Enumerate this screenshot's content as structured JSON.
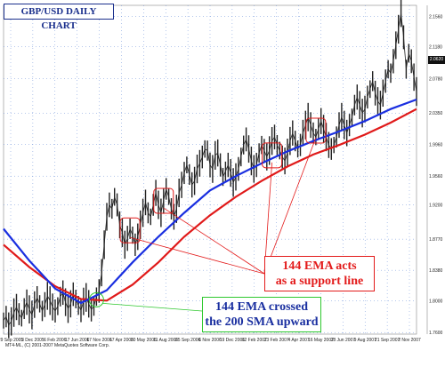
{
  "title": "GBP/USD DAILY CHART",
  "annotations": {
    "support": [
      "144 EMA acts",
      "as a  support line"
    ],
    "cross": [
      "144 EMA crossed",
      "the 200 SMA upward"
    ]
  },
  "copyright": "MT4-ML, (C) 2001-2007 MetaQuotes Software Corp.",
  "price_marker": "2.0620",
  "colors": {
    "price": "#222222",
    "ema144": "#1a2fe0",
    "sma200": "#e01a1a",
    "annot_red": "#e31b1b",
    "annot_green": "#2ec82e",
    "grid": "#6a8fd8"
  },
  "chart_data": {
    "type": "line",
    "title": "GBP/USD DAILY CHART",
    "ylim": [
      1.758,
      2.17
    ],
    "x_ticks": [
      "29 Sep 2005",
      "3 Dec 2005",
      "6 Feb 2006",
      "17 Jun 2006",
      "17 Nov 2006",
      "17 Apr 2006",
      "30 May 2006",
      "11 Aug 2006",
      "25 Sep 2006",
      "6 Nov 2006",
      "19 Dec 2006",
      "12 Feb 2007",
      "23 Feb 2007",
      "4 Apr 2007",
      "16 May 2007",
      "28 Jun 2007",
      "9 Aug 2007",
      "21 Sep 2007",
      "2 Nov 2007"
    ],
    "y_ticks": [
      2.156,
      2.118,
      2.078,
      2.035,
      1.996,
      1.956,
      1.92,
      1.877,
      1.838,
      1.8,
      1.76
    ],
    "series": [
      {
        "name": "",
        "x": [
          0,
          1,
          2,
          3,
          4,
          5,
          6,
          7,
          8,
          9,
          10,
          11,
          12,
          13,
          14,
          15,
          16,
          17,
          18,
          19,
          20,
          21,
          22,
          23,
          24,
          25,
          26,
          27,
          28,
          29,
          30,
          31,
          32,
          33,
          34,
          35,
          36,
          37,
          38,
          39,
          40,
          41,
          42,
          43,
          44,
          45,
          46,
          47,
          48,
          49,
          50,
          51,
          52,
          53,
          54,
          55,
          56,
          57,
          58,
          59,
          60,
          61,
          62,
          63,
          64,
          65,
          66,
          67,
          68,
          69,
          70,
          71,
          72,
          73,
          74,
          75,
          76,
          77,
          78,
          79,
          80,
          81,
          82,
          83,
          84,
          85,
          86,
          87,
          88,
          89,
          90,
          91,
          92,
          93,
          94,
          95,
          96,
          97,
          98,
          99,
          100,
          101,
          102,
          103,
          104,
          105,
          106,
          107,
          108,
          109,
          110,
          111,
          112,
          113,
          114,
          115,
          116,
          117,
          118,
          119,
          120,
          121,
          122,
          123,
          124,
          125,
          126,
          127,
          128,
          129,
          130,
          131,
          132,
          133,
          134,
          135,
          136,
          137,
          138,
          139,
          140,
          141,
          142,
          143,
          144,
          145,
          146,
          147,
          148,
          149,
          150,
          151,
          152,
          153,
          154,
          155,
          156,
          157,
          158,
          159,
          160
        ],
        "y": [
          1.775,
          1.78,
          1.769,
          1.774,
          1.785,
          1.792,
          1.783,
          1.778,
          1.79,
          1.798,
          1.789,
          1.782,
          1.795,
          1.804,
          1.796,
          1.787,
          1.795,
          1.806,
          1.8,
          1.792,
          1.787,
          1.793,
          1.805,
          1.81,
          1.798,
          1.79,
          1.796,
          1.808,
          1.802,
          1.794,
          1.788,
          1.799,
          1.804,
          1.796,
          1.789,
          1.793,
          1.805,
          1.812,
          1.835,
          1.87,
          1.905,
          1.92,
          1.915,
          1.93,
          1.92,
          1.895,
          1.885,
          1.87,
          1.878,
          1.89,
          1.882,
          1.87,
          1.88,
          1.895,
          1.91,
          1.923,
          1.91,
          1.905,
          1.92,
          1.935,
          1.92,
          1.91,
          1.925,
          1.94,
          1.93,
          1.915,
          1.905,
          1.915,
          1.935,
          1.945,
          1.96,
          1.97,
          1.958,
          1.945,
          1.95,
          1.965,
          1.972,
          1.98,
          1.99,
          1.988,
          1.97,
          1.965,
          1.982,
          1.985,
          1.97,
          1.955,
          1.962,
          1.97,
          1.96,
          1.948,
          1.955,
          1.965,
          1.98,
          1.995,
          2.002,
          1.99,
          1.975,
          1.965,
          1.97,
          1.985,
          1.995,
          1.988,
          1.98,
          1.988,
          2.0,
          2.005,
          1.995,
          1.988,
          1.98,
          1.975,
          1.985,
          2.0,
          2.01,
          2.0,
          1.99,
          1.995,
          2.01,
          2.02,
          2.03,
          2.02,
          2.01,
          2.005,
          2.015,
          2.025,
          2.015,
          2.005,
          1.995,
          1.99,
          1.995,
          2.005,
          2.02,
          2.03,
          2.02,
          2.01,
          2.02,
          2.03,
          2.045,
          2.055,
          2.045,
          2.035,
          2.04,
          2.055,
          2.065,
          2.075,
          2.06,
          2.05,
          2.045,
          2.06,
          2.075,
          2.09,
          2.085,
          2.1,
          2.12,
          2.14,
          2.16,
          2.13,
          2.09,
          2.11,
          2.1,
          2.08,
          2.062
        ]
      },
      {
        "name": "144 EMA",
        "x": [
          0,
          10,
          20,
          30,
          40,
          50,
          60,
          70,
          80,
          90,
          100,
          110,
          120,
          130,
          140,
          150,
          160
        ],
        "y": [
          1.89,
          1.85,
          1.815,
          1.797,
          1.813,
          1.848,
          1.88,
          1.91,
          1.938,
          1.956,
          1.972,
          1.987,
          2.0,
          2.012,
          2.025,
          2.04,
          2.052
        ]
      },
      {
        "name": "200 SMA",
        "x": [
          0,
          10,
          20,
          30,
          40,
          50,
          60,
          70,
          80,
          90,
          100,
          110,
          120,
          130,
          140,
          150,
          160
        ],
        "y": [
          1.87,
          1.842,
          1.818,
          1.802,
          1.8,
          1.82,
          1.848,
          1.88,
          1.907,
          1.93,
          1.95,
          1.968,
          1.983,
          1.995,
          2.008,
          2.023,
          2.04
        ]
      }
    ],
    "highlights": [
      {
        "x": 36,
        "y": 1.801,
        "label": "144 EMA crossed the 200 SMA upward"
      },
      {
        "x": 49,
        "y": 1.888,
        "label": "144 EMA acts as a support line"
      },
      {
        "x": 62,
        "y": 1.925,
        "label": "144 EMA acts as a support line"
      },
      {
        "x": 104,
        "y": 1.982,
        "label": "144 EMA acts as a support line"
      },
      {
        "x": 121,
        "y": 2.013,
        "label": "144 EMA acts as a support line"
      }
    ]
  }
}
